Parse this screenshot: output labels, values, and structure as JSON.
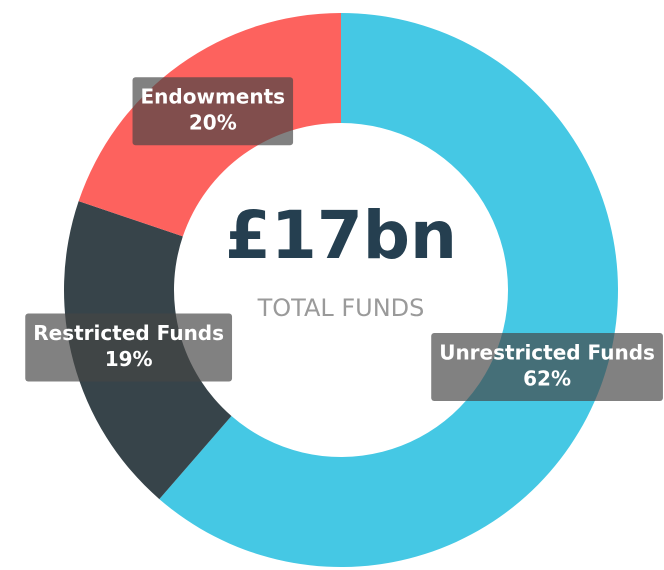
{
  "chart_data": {
    "type": "donut",
    "center_value": "£17bn",
    "center_label": "TOTAL FUNDS",
    "categories": [
      "Unrestricted Funds",
      "Restricted Funds",
      "Endowments"
    ],
    "values": [
      62,
      19,
      20
    ],
    "value_labels": [
      "62%",
      "19%",
      "20%"
    ],
    "colors": [
      "#45c8e4",
      "#37444a",
      "#fd625e"
    ]
  }
}
